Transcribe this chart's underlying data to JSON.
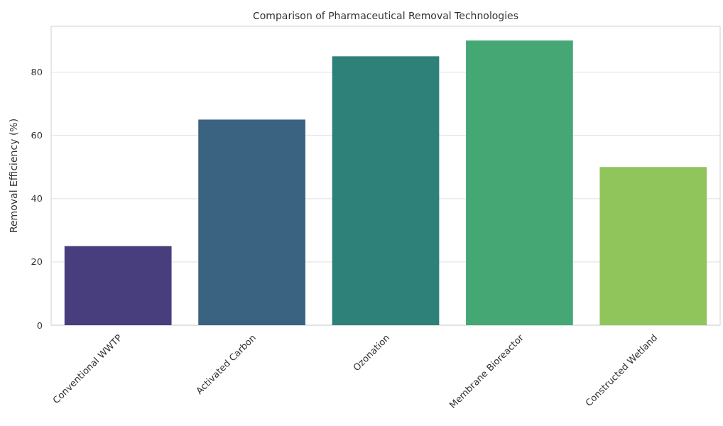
{
  "chart_data": {
    "type": "bar",
    "title": "Comparison of Pharmaceutical Removal Technologies",
    "ylabel": "Removal Efficiency (%)",
    "categories": [
      "Conventional WWTP",
      "Activated Carbon",
      "Ozonation",
      "Membrane Bioreactor",
      "Constructed Wetland"
    ],
    "values": [
      25,
      65,
      85,
      90,
      50
    ],
    "colors": [
      "#483d7d",
      "#3a6381",
      "#2e8178",
      "#45a874",
      "#8fc55a"
    ],
    "ylim": [
      0,
      94.5
    ],
    "yticks": [
      0,
      20,
      40,
      60,
      80
    ],
    "grid": "y"
  }
}
